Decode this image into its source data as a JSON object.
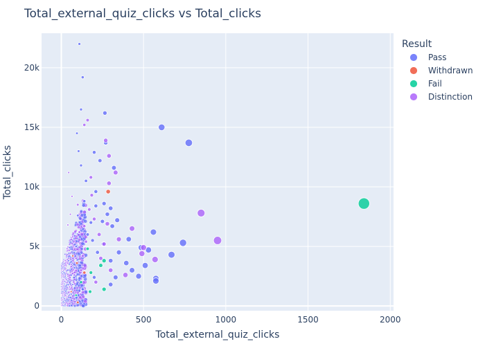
{
  "chart_data": {
    "type": "scatter",
    "title": "Total_external_quiz_clicks vs Total_clicks",
    "xlabel": "Total_external_quiz_clicks",
    "ylabel": "Total_clicks",
    "xlim": [
      -120,
      2020
    ],
    "ylim": [
      -400,
      22900
    ],
    "x_ticks": [
      0,
      500,
      1000,
      1500,
      2000
    ],
    "x_tick_labels": [
      "0",
      "500",
      "1000",
      "1500",
      "2000"
    ],
    "y_ticks": [
      0,
      5000,
      10000,
      15000,
      20000
    ],
    "y_tick_labels": [
      "0",
      "5k",
      "10k",
      "15k",
      "20k"
    ],
    "grid": true,
    "legend_position": "right",
    "legend_title": "Result",
    "series": [
      {
        "name": "Pass",
        "color": "#636efa",
        "points": [
          [
            110,
            22000
          ],
          [
            130,
            19200
          ],
          [
            265,
            16200
          ],
          [
            610,
            15000
          ],
          [
            775,
            13700
          ],
          [
            270,
            13700
          ],
          [
            320,
            11600
          ],
          [
            200,
            12900
          ],
          [
            235,
            12200
          ],
          [
            150,
            10500
          ],
          [
            210,
            9600
          ],
          [
            260,
            8600
          ],
          [
            300,
            8200
          ],
          [
            340,
            7200
          ],
          [
            410,
            5600
          ],
          [
            560,
            6200
          ],
          [
            740,
            5300
          ],
          [
            670,
            4300
          ],
          [
            575,
            2300
          ],
          [
            575,
            2100
          ],
          [
            470,
            2500
          ],
          [
            510,
            3400
          ],
          [
            395,
            3600
          ],
          [
            330,
            2400
          ],
          [
            530,
            4700
          ],
          [
            485,
            4900
          ],
          [
            280,
            7700
          ],
          [
            310,
            6700
          ],
          [
            255,
            5200
          ],
          [
            220,
            4500
          ],
          [
            180,
            7000
          ],
          [
            160,
            6000
          ],
          [
            140,
            8800
          ],
          [
            120,
            11800
          ],
          [
            100,
            7600
          ],
          [
            90,
            5000
          ],
          [
            80,
            3200
          ],
          [
            70,
            1800
          ],
          [
            60,
            1000
          ],
          [
            130,
            1400
          ],
          [
            200,
            2400
          ],
          [
            300,
            3800
          ],
          [
            95,
            14500
          ],
          [
            105,
            13000
          ],
          [
            120,
            16500
          ],
          [
            250,
            7100
          ],
          [
            210,
            8400
          ],
          [
            190,
            5500
          ],
          [
            350,
            4500
          ],
          [
            430,
            3000
          ],
          [
            300,
            1800
          ]
        ]
      },
      {
        "name": "Withdrawn",
        "color": "#ef553b",
        "points": [
          [
            285,
            9600
          ],
          [
            95,
            3600
          ],
          [
            140,
            2800
          ],
          [
            70,
            4200
          ],
          [
            100,
            300
          ],
          [
            60,
            1200
          ]
        ]
      },
      {
        "name": "Fail",
        "color": "#00cc96",
        "points": [
          [
            1840,
            8600
          ],
          [
            240,
            3400
          ],
          [
            260,
            1400
          ],
          [
            175,
            1200
          ],
          [
            180,
            2800
          ],
          [
            120,
            2000
          ],
          [
            260,
            3800
          ],
          [
            90,
            900
          ],
          [
            160,
            4800
          ]
        ]
      },
      {
        "name": "Distinction",
        "color": "#ab63fa",
        "points": [
          [
            950,
            5500
          ],
          [
            850,
            7800
          ],
          [
            570,
            3900
          ],
          [
            490,
            4400
          ],
          [
            500,
            4900
          ],
          [
            430,
            6500
          ],
          [
            390,
            2600
          ],
          [
            330,
            11200
          ],
          [
            290,
            12600
          ],
          [
            290,
            10300
          ],
          [
            280,
            6900
          ],
          [
            230,
            6000
          ],
          [
            200,
            7300
          ],
          [
            185,
            9300
          ],
          [
            170,
            8100
          ],
          [
            150,
            5400
          ],
          [
            140,
            6700
          ],
          [
            130,
            4200
          ],
          [
            120,
            3000
          ],
          [
            110,
            6200
          ],
          [
            100,
            8500
          ],
          [
            90,
            4000
          ],
          [
            80,
            2600
          ],
          [
            70,
            5800
          ],
          [
            60,
            3500
          ],
          [
            50,
            1600
          ],
          [
            40,
            6800
          ],
          [
            35,
            4800
          ],
          [
            30,
            2200
          ],
          [
            25,
            3800
          ],
          [
            160,
            15600
          ],
          [
            140,
            15200
          ],
          [
            180,
            10800
          ],
          [
            260,
            5200
          ],
          [
            300,
            3000
          ],
          [
            350,
            5600
          ],
          [
            210,
            2000
          ],
          [
            240,
            4000
          ],
          [
            270,
            13900
          ],
          [
            65,
            9200
          ],
          [
            55,
            7700
          ],
          [
            45,
            11200
          ]
        ]
      }
    ]
  }
}
